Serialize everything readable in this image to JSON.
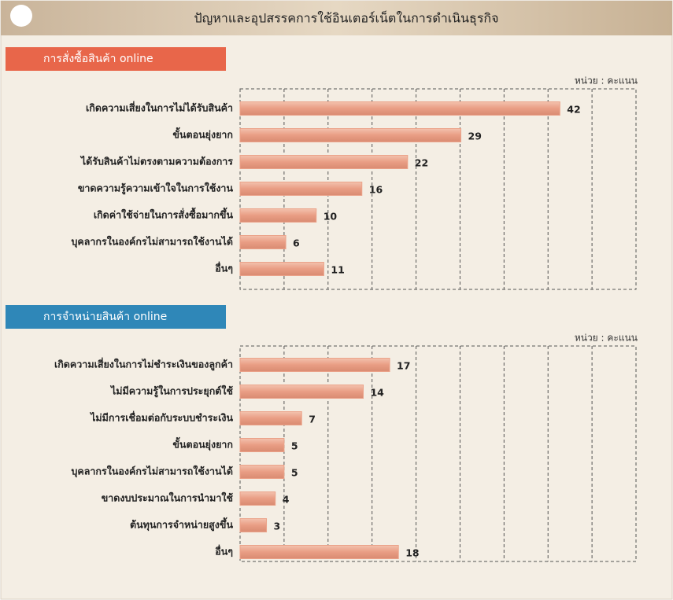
{
  "title": "ปัญหาและอุปสรรคการใช้อินเตอร์เน็ตในการดำเนินธุรกิจ",
  "chart_data": [
    {
      "type": "bar",
      "orientation": "horizontal",
      "title": "การสั่งซื้อสินค้า online",
      "unit": "หน่วย : คะแนน",
      "header_color": "#e8664a",
      "color": "#eba38a",
      "xlim": [
        0,
        52
      ],
      "categories": [
        "เกิดความเสี่ยงในการไม่ได้รับสินค้า",
        "ขั้นตอนยุ่งยาก",
        "ได้รับสินค้าไม่ตรงตามความต้องการ",
        "ขาดความรู้ความเข้าใจในการใช้งาน",
        "เกิดค่าใช้จ่ายในการสั่งซื้อมากขึ้น",
        "บุคลากรในองค์กรไม่สามารถใช้งานได้",
        "อื่นๆ"
      ],
      "values": [
        42,
        29,
        22,
        16,
        10,
        6,
        11
      ]
    },
    {
      "type": "bar",
      "orientation": "horizontal",
      "title": "การจำหน่ายสินค้า online",
      "unit": "หน่วย : คะแนน",
      "header_color": "#2f87b8",
      "color": "#eba38a",
      "xlim": [
        0,
        45
      ],
      "categories": [
        "เกิดความเสี่ยงในการไม่ชำระเงินของลูกค้า",
        "ไม่มีความรู้ในการประยุกต์ใช้",
        "ไม่มีการเชื่อมต่อกับระบบชำระเงิน",
        "ขั้นตอนยุ่งยาก",
        "บุคลากรในองค์กรไม่สามารถใช้งานได้",
        "ขาดงบประมาณในการนำมาใช้",
        "ต้นทุนการจำหน่ายสูงขึ้น",
        "อื่นๆ"
      ],
      "values": [
        17,
        14,
        7,
        5,
        5,
        4,
        3,
        18
      ]
    }
  ]
}
